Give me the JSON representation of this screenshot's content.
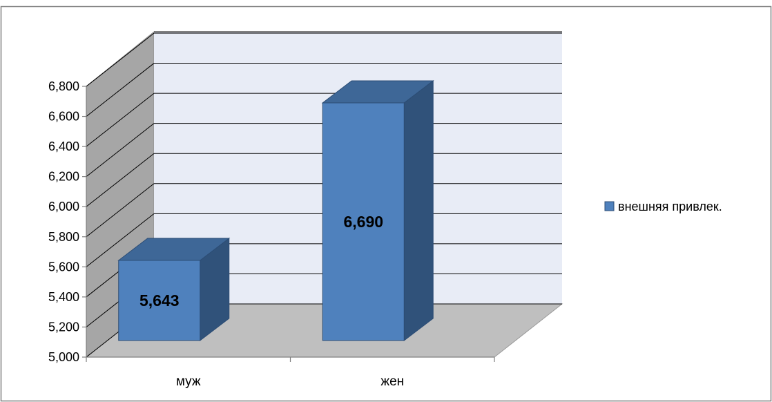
{
  "chart_data": {
    "type": "bar",
    "categories": [
      "муж",
      "жен"
    ],
    "series": [
      {
        "name": "внешняя привлек.",
        "values": [
          5.643,
          6.69
        ]
      }
    ],
    "data_labels": [
      "5,643",
      "6,690"
    ],
    "ylim": [
      5.0,
      6.8
    ],
    "yticks": [
      5.0,
      5.2,
      5.4,
      5.6,
      5.8,
      6.0,
      6.2,
      6.4,
      6.6,
      6.8
    ],
    "ytick_labels": [
      "5,000",
      "5,200",
      "5,400",
      "5,600",
      "5,800",
      "6,000",
      "6,200",
      "6,400",
      "6,600",
      "6,800"
    ],
    "grid": true,
    "legend_position": "right",
    "three_d": true,
    "title": "",
    "xlabel": "",
    "ylabel": ""
  },
  "colors": {
    "bar_front": "#4F81BD",
    "bar_top": "#3E6797",
    "bar_side": "#30527A",
    "bar_edge": "#2C4D75",
    "back_wall": "#E8ECF6",
    "side_wall": "#A6A6A6",
    "floor": "#BFBFBF",
    "gridline": "#000000",
    "frame": "#7F7F7F"
  }
}
